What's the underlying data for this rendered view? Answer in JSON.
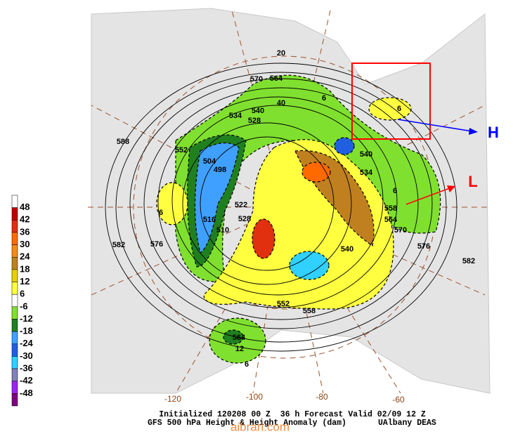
{
  "legend": {
    "labels": [
      "48",
      "42",
      "36",
      "30",
      "24",
      "18",
      "12",
      "6",
      "-6",
      "-12",
      "-18",
      "-24",
      "-30",
      "-36",
      "-42",
      "-48"
    ],
    "colors": [
      "#ffffff",
      "#c00000",
      "#e03010",
      "#ff6a00",
      "#f08c1a",
      "#c08020",
      "#e8d000",
      "#ffff40",
      "#ffffff",
      "#80e030",
      "#208020",
      "#40a0ff",
      "#2060e0",
      "#30d0ff",
      "#8080c0",
      "#a020f0",
      "#800080"
    ]
  },
  "contour_labels": [
    "570",
    "564",
    "540",
    "534",
    "528",
    "588",
    "552",
    "504",
    "498",
    "6",
    "510",
    "516",
    "582",
    "576",
    "522",
    "528",
    "552",
    "558",
    "540",
    "570",
    "576",
    "582",
    "534",
    "540",
    "558",
    "564",
    "6",
    "6",
    "6",
    "12",
    "6",
    "564",
    "20",
    "40"
  ],
  "longitude_labels": [
    "-120",
    "-100",
    "-80",
    "-60"
  ],
  "annotations": {
    "high": "H",
    "low": "L"
  },
  "footer": {
    "line1": "Initialized 120208 00 Z  36 h Forecast Valid 02/09 12 Z",
    "line2": "GFS 500 hPa Height & Height Anomaly (dam)",
    "credit": "UAlbany DEAS"
  },
  "watermark": "aibrarl.com"
}
